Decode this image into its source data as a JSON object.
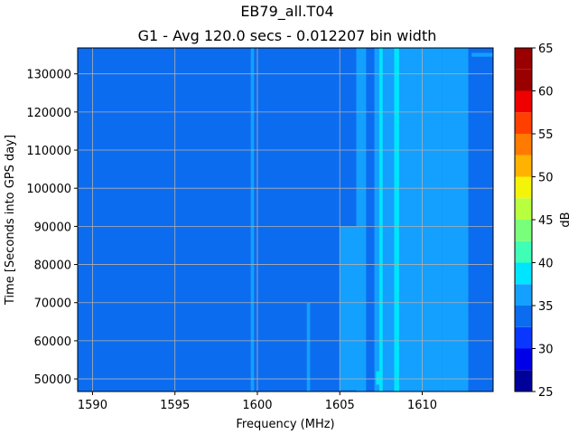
{
  "chart_data": {
    "type": "heatmap",
    "title": "EB79_all.T04",
    "subtitle": "G1 - Avg 120.0 secs - 0.012207 bin width",
    "xlabel": "Frequency (MHz)",
    "ylabel": "Time [Seconds into GPS day]",
    "xlim": [
      1589.1,
      1614.3
    ],
    "ylim": [
      46700,
      136800
    ],
    "xticks": [
      1590,
      1595,
      1600,
      1605,
      1610
    ],
    "yticks": [
      50000,
      60000,
      70000,
      80000,
      90000,
      100000,
      110000,
      120000,
      130000
    ],
    "grid": true,
    "colorbar": {
      "label": "dB",
      "levels": [
        25,
        27.5,
        30,
        32.5,
        35,
        37.5,
        40,
        42.5,
        45,
        47.5,
        50,
        52.5,
        55,
        57.5,
        60,
        62.5,
        65
      ],
      "ticks": [
        25,
        30,
        35,
        40,
        45,
        50,
        55,
        60,
        65
      ],
      "colors": [
        "#00009a",
        "#0000e8",
        "#0a37ff",
        "#0c6cf0",
        "#13a0ff",
        "#00e5ff",
        "#3fffb7",
        "#7aff7a",
        "#b7ff3f",
        "#f4f40a",
        "#ffb300",
        "#ff7a00",
        "#ff3f00",
        "#ee0000",
        "#9a0000",
        "#9a0000"
      ]
    },
    "background_level": 32.5,
    "bands": [
      {
        "x0": 1605.0,
        "x1": 1606.0,
        "level_bin": 4,
        "y0": 47000,
        "y1": 90000
      },
      {
        "x0": 1605.5,
        "x1": 1605.9,
        "level_bin": 3,
        "y0": 90000,
        "y1": 136800
      },
      {
        "x0": 1606.0,
        "x1": 1606.6,
        "level_bin": 4,
        "y0": 46700,
        "y1": 136800
      },
      {
        "x0": 1606.6,
        "x1": 1607.1,
        "level_bin": 3,
        "y0": 46700,
        "y1": 136800
      },
      {
        "x0": 1607.1,
        "x1": 1607.7,
        "level_bin": 4,
        "y0": 46700,
        "y1": 136800
      },
      {
        "x0": 1607.4,
        "x1": 1607.6,
        "level_bin": 5,
        "y0": 46700,
        "y1": 136800
      },
      {
        "x0": 1607.7,
        "x1": 1608.3,
        "level_bin": 4,
        "y0": 46700,
        "y1": 136800
      },
      {
        "x0": 1608.3,
        "x1": 1608.6,
        "level_bin": 5,
        "y0": 46700,
        "y1": 136800
      },
      {
        "x0": 1608.6,
        "x1": 1609.7,
        "level_bin": 4,
        "y0": 46700,
        "y1": 136800
      },
      {
        "x0": 1609.7,
        "x1": 1611.2,
        "level_bin": 4,
        "y0": 46700,
        "y1": 136800
      },
      {
        "x0": 1611.2,
        "x1": 1612.8,
        "level_bin": 4,
        "y0": 46700,
        "y1": 136800
      },
      {
        "x0": 1612.8,
        "x1": 1614.3,
        "level_bin": 3,
        "y0": 46700,
        "y1": 136800
      },
      {
        "x0": 1603.0,
        "x1": 1603.2,
        "level_bin": 4,
        "y0": 46700,
        "y1": 70000
      },
      {
        "x0": 1599.6,
        "x1": 1599.8,
        "level_bin": 4,
        "y0": 46700,
        "y1": 136800
      },
      {
        "x0": 1607.2,
        "x1": 1607.5,
        "level_bin": 5,
        "y0": 48500,
        "y1": 52000
      },
      {
        "x0": 1613.0,
        "x1": 1614.3,
        "level_bin": 4,
        "y0": 134500,
        "y1": 135500
      }
    ]
  }
}
